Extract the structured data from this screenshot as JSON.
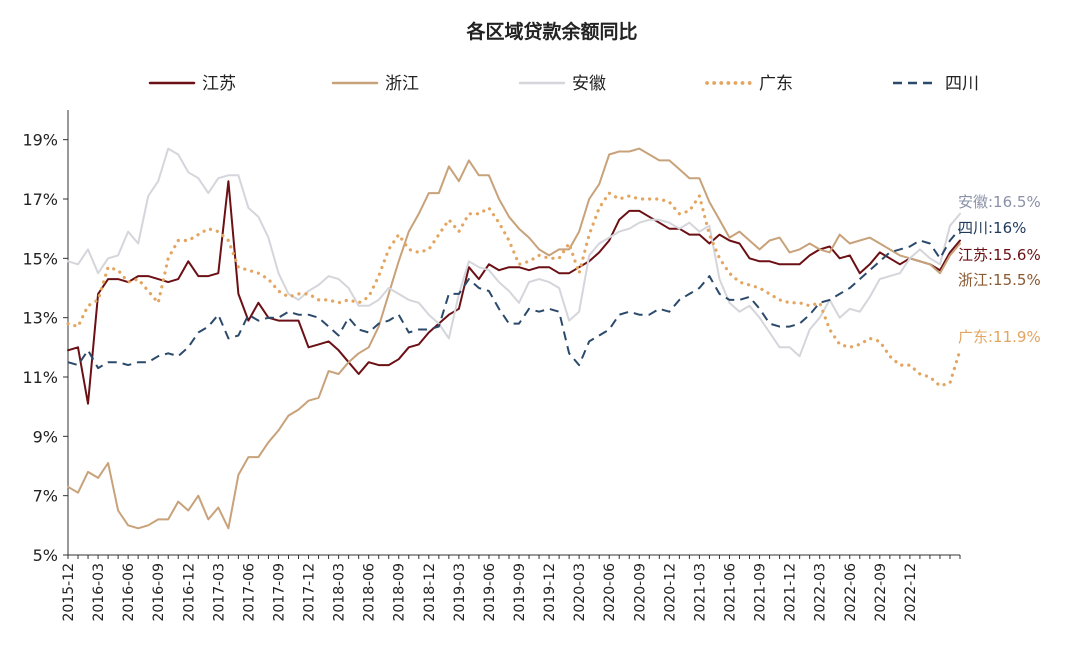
{
  "chart_data": {
    "type": "line",
    "title": "各区域贷款余额同比",
    "ylim": [
      5,
      20
    ],
    "yticks": [
      "19%",
      "17%",
      "15%",
      "13%",
      "11%",
      "9%",
      "7%",
      "5%"
    ],
    "ytick_values": [
      19,
      17,
      15,
      13,
      11,
      9,
      7,
      5
    ],
    "xtick_labels": [
      "2015-12",
      "2016-03",
      "2016-06",
      "2016-09",
      "2016-12",
      "2017-03",
      "2017-06",
      "2017-09",
      "2017-12",
      "2018-03",
      "2018-06",
      "2018-09",
      "2018-12",
      "2019-03",
      "2019-06",
      "2019-09",
      "2019-12",
      "2020-03",
      "2020-06",
      "2020-09",
      "2020-12",
      "2021-03",
      "2021-06",
      "2021-09",
      "2021-12",
      "2022-03",
      "2022-06",
      "2022-09",
      "2022-12"
    ],
    "x_start": "2015-12",
    "x_end": "2023-03",
    "legend_position": "top",
    "grid": false,
    "series": [
      {
        "name": "江苏",
        "color": "#6b1014",
        "style": "solid",
        "end_label": "江苏:15.6%",
        "values": [
          11.9,
          12.0,
          10.1,
          13.8,
          14.3,
          14.3,
          14.2,
          14.4,
          14.4,
          14.3,
          14.2,
          14.3,
          14.9,
          14.4,
          14.4,
          14.5,
          17.6,
          13.8,
          12.9,
          13.5,
          13.0,
          12.9,
          12.9,
          12.9,
          12.0,
          12.1,
          12.2,
          11.9,
          11.5,
          11.1,
          11.5,
          11.4,
          11.4,
          11.6,
          12.0,
          12.1,
          12.5,
          12.8,
          13.1,
          13.3,
          14.7,
          14.3,
          14.8,
          14.6,
          14.7,
          14.7,
          14.6,
          14.7,
          14.7,
          14.5,
          14.5,
          14.7,
          14.9,
          15.2,
          15.6,
          16.3,
          16.6,
          16.6,
          16.4,
          16.2,
          16.0,
          16.0,
          15.8,
          15.8,
          15.5,
          15.8,
          15.6,
          15.5,
          15.0,
          14.9,
          14.9,
          14.8,
          14.8,
          14.8,
          15.1,
          15.3,
          15.4,
          15.0,
          15.1,
          14.5,
          14.8,
          15.2,
          15.0,
          14.8,
          15.0,
          14.9,
          14.8,
          14.6,
          15.2,
          15.6
        ]
      },
      {
        "name": "浙江",
        "color": "#c8a27a",
        "style": "solid",
        "end_label": "浙江:15.5%",
        "values": [
          7.3,
          7.1,
          7.8,
          7.6,
          8.1,
          6.5,
          6.0,
          5.9,
          6.0,
          6.2,
          6.2,
          6.8,
          6.5,
          7.0,
          6.2,
          6.6,
          5.9,
          7.7,
          8.3,
          8.3,
          8.8,
          9.2,
          9.7,
          9.9,
          10.2,
          10.3,
          11.2,
          11.1,
          11.5,
          11.8,
          12.0,
          12.7,
          13.8,
          14.9,
          15.9,
          16.5,
          17.2,
          17.2,
          18.1,
          17.6,
          18.3,
          17.8,
          17.8,
          17.0,
          16.4,
          16.0,
          15.7,
          15.3,
          15.1,
          15.3,
          15.3,
          15.9,
          17.0,
          17.5,
          18.5,
          18.6,
          18.6,
          18.7,
          18.5,
          18.3,
          18.3,
          18.0,
          17.7,
          17.7,
          16.9,
          16.3,
          15.7,
          15.9,
          15.6,
          15.3,
          15.6,
          15.7,
          15.2,
          15.3,
          15.5,
          15.3,
          15.2,
          15.8,
          15.5,
          15.6,
          15.7,
          15.5,
          15.3,
          15.1,
          15.0,
          14.9,
          14.8,
          14.5,
          15.1,
          15.5
        ]
      },
      {
        "name": "安徽",
        "color": "#d5d5dc",
        "style": "solid",
        "end_label": "安徽:16.5%",
        "values": [
          14.9,
          14.8,
          15.3,
          14.5,
          15.0,
          15.1,
          15.9,
          15.5,
          17.1,
          17.6,
          18.7,
          18.5,
          17.9,
          17.7,
          17.2,
          17.7,
          17.8,
          17.8,
          16.7,
          16.4,
          15.7,
          14.5,
          13.8,
          13.6,
          13.9,
          14.1,
          14.4,
          14.3,
          14.0,
          13.4,
          13.4,
          13.6,
          14.0,
          13.8,
          13.6,
          13.5,
          13.1,
          12.8,
          12.3,
          13.8,
          14.9,
          14.7,
          14.6,
          14.2,
          13.9,
          13.5,
          14.2,
          14.3,
          14.2,
          14.0,
          12.9,
          13.2,
          15.1,
          15.5,
          15.7,
          15.9,
          16.0,
          16.2,
          16.3,
          16.3,
          16.2,
          16.0,
          16.2,
          15.9,
          16.1,
          14.3,
          13.5,
          13.2,
          13.4,
          13.0,
          12.5,
          12.0,
          12.0,
          11.7,
          12.6,
          13.0,
          13.6,
          13.0,
          13.3,
          13.2,
          13.7,
          14.3,
          14.4,
          14.5,
          15.0,
          15.3,
          15.0,
          14.8,
          16.1,
          16.5
        ]
      },
      {
        "name": "广东",
        "color": "#e3a55f",
        "style": "dotted",
        "end_label": "广东:11.9%",
        "values": [
          12.8,
          12.7,
          13.4,
          13.6,
          14.7,
          14.6,
          14.2,
          14.3,
          13.9,
          13.5,
          15.0,
          15.6,
          15.6,
          15.8,
          16.0,
          15.9,
          15.6,
          14.7,
          14.6,
          14.5,
          14.3,
          13.9,
          13.7,
          13.8,
          13.8,
          13.6,
          13.6,
          13.5,
          13.6,
          13.5,
          13.7,
          14.4,
          15.3,
          15.8,
          15.3,
          15.2,
          15.3,
          15.8,
          16.3,
          15.9,
          16.5,
          16.5,
          16.7,
          16.2,
          15.6,
          14.8,
          14.9,
          15.1,
          15.0,
          15.0,
          15.5,
          14.5,
          15.8,
          16.7,
          17.2,
          17.0,
          17.1,
          17.0,
          17.0,
          17.0,
          16.9,
          16.5,
          16.6,
          17.1,
          15.8,
          15.0,
          14.5,
          14.2,
          14.1,
          14.0,
          13.8,
          13.6,
          13.5,
          13.5,
          13.4,
          13.5,
          12.6,
          12.1,
          12.0,
          12.1,
          12.3,
          12.2,
          11.7,
          11.4,
          11.4,
          11.1,
          11.0,
          10.7,
          10.8,
          11.9
        ]
      },
      {
        "name": "四川",
        "color": "#2b4a6b",
        "style": "dashed",
        "end_label": "四川:16%",
        "values": [
          11.5,
          11.4,
          11.9,
          11.3,
          11.5,
          11.5,
          11.4,
          11.5,
          11.5,
          11.7,
          11.8,
          11.7,
          12.0,
          12.5,
          12.7,
          13.1,
          12.3,
          12.4,
          13.1,
          12.9,
          13.0,
          13.0,
          13.2,
          13.1,
          13.1,
          13.0,
          12.7,
          12.4,
          13.0,
          12.6,
          12.5,
          12.8,
          12.9,
          13.1,
          12.5,
          12.6,
          12.6,
          12.7,
          13.8,
          13.8,
          14.3,
          14.0,
          13.9,
          13.3,
          12.8,
          12.8,
          13.3,
          13.2,
          13.3,
          13.2,
          11.8,
          11.4,
          12.2,
          12.4,
          12.6,
          13.1,
          13.2,
          13.1,
          13.1,
          13.3,
          13.2,
          13.6,
          13.8,
          14.0,
          14.4,
          13.8,
          13.6,
          13.6,
          13.7,
          13.3,
          12.8,
          12.7,
          12.7,
          12.8,
          13.1,
          13.5,
          13.6,
          13.8,
          14.0,
          14.3,
          14.6,
          14.9,
          15.2,
          15.3,
          15.4,
          15.6,
          15.5,
          15.0,
          15.6,
          16.0
        ]
      }
    ]
  }
}
